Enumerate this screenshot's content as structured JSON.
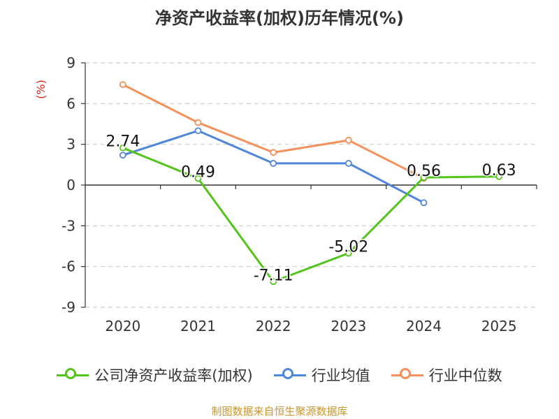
{
  "chart_data": {
    "type": "line",
    "title": "净资产收益率(加权)历年情况(%)",
    "ylabel": "(%)",
    "xlabel": "",
    "ylim": [
      -9,
      9
    ],
    "yticks": [
      9,
      6,
      3,
      0,
      -3,
      -6,
      -9
    ],
    "categories": [
      "2020",
      "2021",
      "2022",
      "2023",
      "2024",
      "2025"
    ],
    "series": [
      {
        "name": "公司净资产收益率(加权)",
        "color": "#52c41a",
        "values": [
          2.74,
          0.49,
          -7.11,
          -5.02,
          0.56,
          0.63
        ],
        "labels": [
          "2.74",
          "0.49",
          "-7.11",
          "-5.02",
          "0.56",
          "0.63"
        ]
      },
      {
        "name": "行业均值",
        "color": "#4e86d9",
        "values": [
          2.2,
          4.0,
          1.6,
          1.6,
          -1.3,
          null
        ]
      },
      {
        "name": "行业中位数",
        "color": "#f5905a",
        "values": [
          7.4,
          4.6,
          2.4,
          3.3,
          0.5,
          null
        ]
      }
    ],
    "grid": true,
    "legend_position": "bottom"
  },
  "source": "制图数据来自恒生聚源数据库"
}
